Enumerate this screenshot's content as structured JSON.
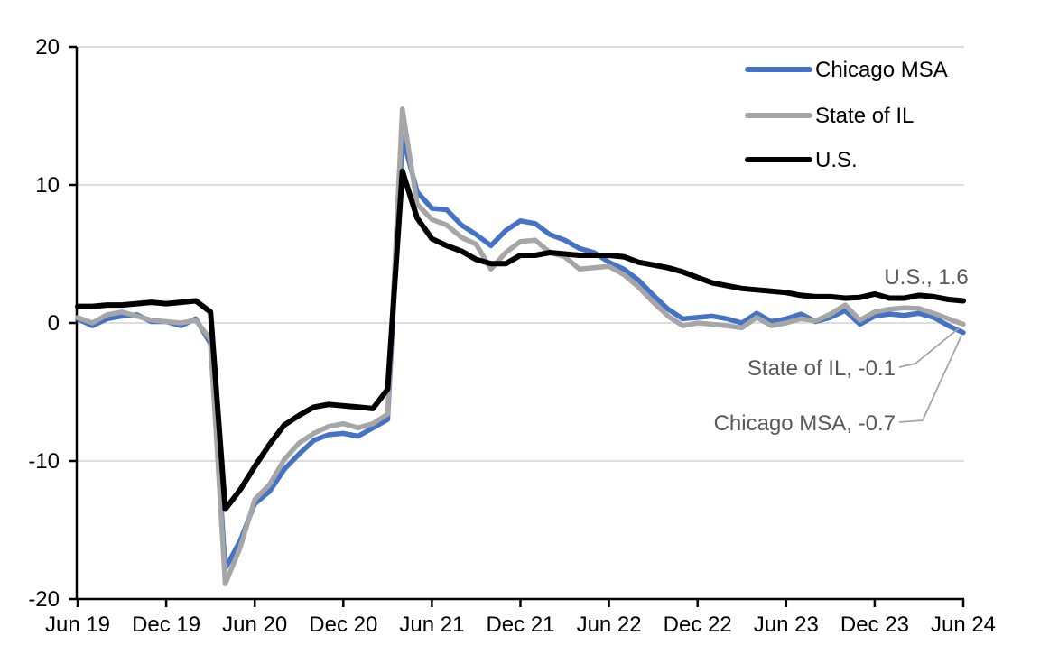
{
  "chart_data": {
    "type": "line",
    "title": "",
    "xlabel": "",
    "ylabel": "",
    "frequency": "monthly",
    "x_range_labels": [
      "Jun 19",
      "Jun 24"
    ],
    "x_tick_labels": [
      "Jun 19",
      "Dec 19",
      "Jun 20",
      "Dec 20",
      "Jun 21",
      "Dec 21",
      "Jun 22",
      "Dec 22",
      "Jun 23",
      "Dec 23",
      "Jun 24"
    ],
    "x_ticks_every_n_points": 6,
    "y_ticks": [
      20,
      10,
      0,
      -10,
      -20
    ],
    "y_tick_labels": [
      "20",
      "10",
      "0",
      "-10",
      "-20"
    ],
    "ylim": [
      -20,
      20
    ],
    "grid": "horizontal",
    "legend_position": "top-right",
    "series": [
      {
        "name": "Chicago MSA",
        "color": "#4472C4",
        "values": [
          0.3,
          -0.2,
          0.3,
          0.5,
          0.6,
          0.1,
          0.1,
          -0.2,
          0.3,
          -1.5,
          -17.8,
          -15.8,
          -13.1,
          -12.2,
          -10.6,
          -9.5,
          -8.5,
          -8.1,
          -8.0,
          -8.2,
          -7.6,
          -7.0,
          13.5,
          9.5,
          8.3,
          8.2,
          7.1,
          6.4,
          5.6,
          6.7,
          7.4,
          7.2,
          6.4,
          6.0,
          5.4,
          5.1,
          4.4,
          3.9,
          3.1,
          2.0,
          1.0,
          0.3,
          0.4,
          0.5,
          0.3,
          0.0,
          0.7,
          0.1,
          0.3,
          0.65,
          0.1,
          0.4,
          0.9,
          -0.1,
          0.5,
          0.65,
          0.55,
          0.7,
          0.4,
          -0.2,
          -0.7
        ]
      },
      {
        "name": "State of IL",
        "color": "#A6A6A6",
        "values": [
          0.4,
          0.0,
          0.6,
          0.8,
          0.5,
          0.2,
          0.1,
          0.0,
          0.2,
          -1.2,
          -18.9,
          -16.3,
          -12.8,
          -11.7,
          -9.9,
          -8.7,
          -8.0,
          -7.5,
          -7.3,
          -7.6,
          -7.3,
          -6.6,
          15.5,
          8.6,
          7.5,
          7.1,
          6.2,
          5.7,
          3.9,
          5.1,
          5.9,
          6.0,
          5.1,
          4.8,
          3.9,
          4.0,
          4.1,
          3.5,
          2.6,
          1.5,
          0.5,
          -0.2,
          0.0,
          -0.1,
          -0.2,
          -0.35,
          0.4,
          -0.2,
          0.0,
          0.3,
          0.15,
          0.65,
          1.3,
          0.2,
          0.8,
          1.0,
          1.1,
          1.05,
          0.7,
          0.3,
          -0.1
        ]
      },
      {
        "name": "U.S.",
        "color": "#000000",
        "values": [
          1.2,
          1.2,
          1.3,
          1.3,
          1.4,
          1.5,
          1.4,
          1.5,
          1.6,
          0.8,
          -13.5,
          -12.1,
          -10.4,
          -8.8,
          -7.4,
          -6.7,
          -6.1,
          -5.9,
          -6.0,
          -6.1,
          -6.2,
          -4.8,
          11.0,
          7.6,
          6.1,
          5.6,
          5.2,
          4.6,
          4.3,
          4.3,
          4.9,
          4.9,
          5.1,
          5.0,
          4.9,
          4.9,
          4.9,
          4.8,
          4.4,
          4.2,
          4.0,
          3.7,
          3.3,
          2.9,
          2.7,
          2.5,
          2.4,
          2.3,
          2.2,
          2.0,
          1.9,
          1.9,
          1.8,
          1.85,
          2.1,
          1.8,
          1.8,
          2.0,
          1.9,
          1.7,
          1.6
        ]
      }
    ],
    "annotations": [
      {
        "text": "U.S., 1.6",
        "series": "U.S.",
        "value": 1.6
      },
      {
        "text": "State of IL, -0.1",
        "series": "State of IL",
        "value": -0.1
      },
      {
        "text": "Chicago MSA, -0.7",
        "series": "Chicago MSA",
        "value": -0.7
      }
    ],
    "colors": {
      "gridline": "#D9D9D9",
      "axis": "#000000",
      "tick_label": "#000000",
      "annotation_text": "#595959",
      "leader_line": "#A6A6A6"
    }
  }
}
